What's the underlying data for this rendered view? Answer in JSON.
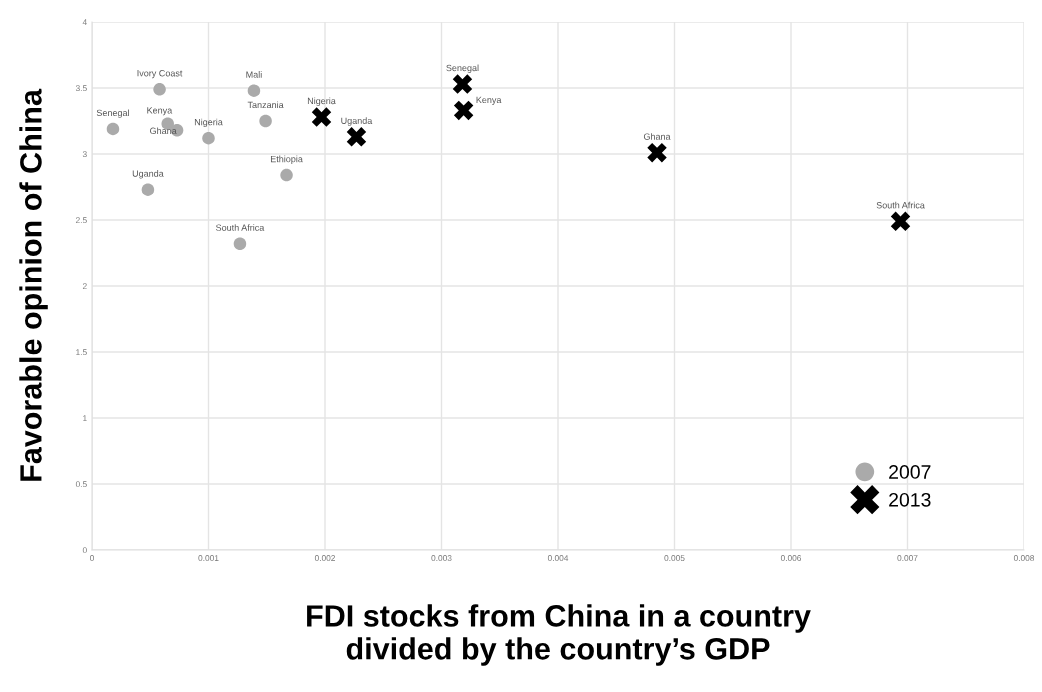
{
  "chart_data": {
    "type": "scatter",
    "xlabel": "FDI stocks from China in a country\ndivided by the country’s GDP",
    "ylabel": "Favorable opinion of China",
    "series": [
      {
        "name": "2007",
        "color": "#aaaaaa",
        "marker": "circle",
        "x": [
          0.00058,
          0.00139,
          0.00018,
          0.00065,
          0.00073,
          0.001,
          0.00149,
          0.00167,
          0.00048,
          0.00127
        ],
        "values": [
          3.49,
          3.48,
          3.19,
          3.23,
          3.18,
          3.12,
          3.25,
          2.84,
          2.73,
          2.32
        ]
      },
      {
        "name": "2013",
        "color": "#000000",
        "marker": "cross",
        "x": [
          0.00197,
          0.00227,
          0.00318,
          0.00319,
          0.00485,
          0.00694
        ],
        "values": [
          3.28,
          3.13,
          3.53,
          3.33,
          3.01,
          2.49
        ]
      }
    ],
    "annotations": [
      {
        "text": "Ivory Coast",
        "x": 0.00058,
        "y": 3.49
      },
      {
        "text": "Mali",
        "x": 0.00139,
        "y": 3.48
      },
      {
        "text": "Senegal",
        "x": 0.00018,
        "y": 3.19
      },
      {
        "text": "Kenya",
        "x": 0.00065,
        "y": 3.23
      },
      {
        "text": "Ghana",
        "x": 0.00073,
        "y": 3.18
      },
      {
        "text": "Nigeria",
        "x": 0.001,
        "y": 3.12
      },
      {
        "text": "Tanzania",
        "x": 0.00149,
        "y": 3.25
      },
      {
        "text": "Ethiopia",
        "x": 0.00167,
        "y": 2.84
      },
      {
        "text": "Uganda",
        "x": 0.00048,
        "y": 2.73
      },
      {
        "text": "South Africa",
        "x": 0.00127,
        "y": 2.32
      },
      {
        "text": "Nigeria",
        "x": 0.00197,
        "y": 3.28
      },
      {
        "text": "Uganda",
        "x": 0.00227,
        "y": 3.13
      },
      {
        "text": "Senegal",
        "x": 0.00318,
        "y": 3.53
      },
      {
        "text": "Kenya",
        "x": 0.00319,
        "y": 3.33
      },
      {
        "text": "Ghana",
        "x": 0.00485,
        "y": 3.01
      },
      {
        "text": "South Africa",
        "x": 0.00694,
        "y": 2.49
      }
    ],
    "xlim": [
      0,
      0.008
    ],
    "xticks": [
      0,
      0.001,
      0.002,
      0.003,
      0.004,
      0.005,
      0.006,
      0.007,
      0.008
    ],
    "ylim": [
      0,
      4
    ],
    "yticks": [
      0,
      0.5,
      1,
      1.5,
      2,
      2.5,
      3,
      3.5,
      4
    ],
    "grid": true,
    "legend": "bottom right"
  }
}
